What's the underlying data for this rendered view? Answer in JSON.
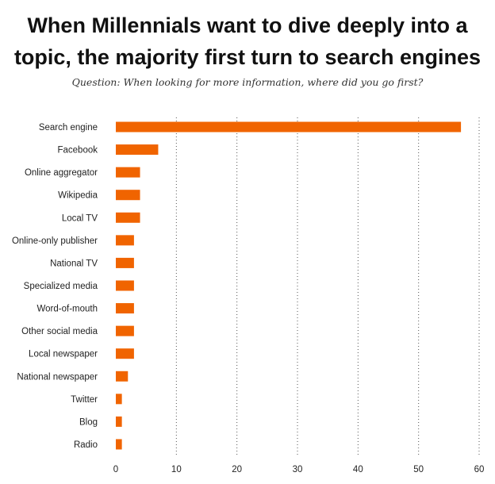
{
  "title": {
    "line1": "When Millennials want to dive deeply into a",
    "line2": "topic, the majority first turn to search engines"
  },
  "subtitle": "Question: When looking for more information, where did you go first?",
  "chart_data": {
    "type": "bar",
    "orientation": "horizontal",
    "title": "When Millennials want to dive deeply into a topic, the majority first turn to search engines",
    "subtitle": "Question: When looking for more information, where did you go first?",
    "categories": [
      "Search engine",
      "Facebook",
      "Online aggregator",
      "Wikipedia",
      "Local TV",
      "Online-only publisher",
      "National TV",
      "Specialized media",
      "Word-of-mouth",
      "Other social media",
      "Local newspaper",
      "National newspaper",
      "Twitter",
      "Blog",
      "Radio"
    ],
    "values": [
      57,
      7,
      4,
      4,
      4,
      3,
      3,
      3,
      3,
      3,
      3,
      2,
      1,
      1,
      1
    ],
    "xlim": [
      0,
      60
    ],
    "xticks": [
      0,
      10,
      20,
      30,
      40,
      50,
      60
    ],
    "grid": "vertical dotted",
    "bar_color": "#f06400",
    "grid_color": "#555555"
  }
}
